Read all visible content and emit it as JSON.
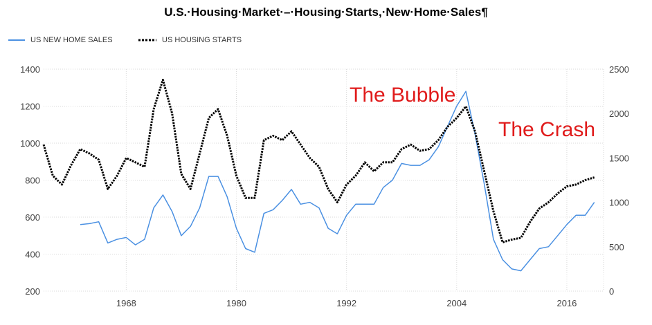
{
  "title": "U.S.·Housing·Market·–·Housing·Starts,·New·Home·Sales¶",
  "legend": [
    {
      "label": "US NEW HOME SALES",
      "color": "#4a90e2",
      "style": "solid"
    },
    {
      "label": "US HOUSING STARTS",
      "color": "#000000",
      "style": "dotted"
    }
  ],
  "annotations": [
    {
      "text": "The Bubble",
      "color": "#e01b1b"
    },
    {
      "text": "The Crash",
      "color": "#e01b1b"
    }
  ],
  "chart_data": {
    "type": "line",
    "x_ticks": [
      "1968",
      "1980",
      "1992",
      "2004",
      "2016"
    ],
    "x_range": [
      1959,
      2020
    ],
    "y_left": {
      "ticks": [
        "200",
        "400",
        "600",
        "800",
        "1000",
        "1200",
        "1400"
      ],
      "range": [
        200,
        1400
      ]
    },
    "y_right": {
      "ticks": [
        "0",
        "500",
        "1000",
        "1500",
        "2000",
        "2500"
      ],
      "range": [
        0,
        2500
      ]
    },
    "grid": true,
    "legend_position": "top-left",
    "series": [
      {
        "name": "US NEW HOME SALES",
        "axis": "left",
        "color": "#4a90e2",
        "x": [
          1963,
          1964,
          1965,
          1966,
          1967,
          1968,
          1969,
          1970,
          1971,
          1972,
          1973,
          1974,
          1975,
          1976,
          1977,
          1978,
          1979,
          1980,
          1981,
          1982,
          1983,
          1984,
          1985,
          1986,
          1987,
          1988,
          1989,
          1990,
          1991,
          1992,
          1993,
          1994,
          1995,
          1996,
          1997,
          1998,
          1999,
          2000,
          2001,
          2002,
          2003,
          2004,
          2005,
          2006,
          2007,
          2008,
          2009,
          2010,
          2011,
          2012,
          2013,
          2014,
          2015,
          2016,
          2017,
          2018,
          2019
        ],
        "values": [
          560,
          565,
          575,
          460,
          480,
          490,
          450,
          480,
          650,
          720,
          630,
          500,
          550,
          650,
          820,
          820,
          710,
          540,
          430,
          410,
          620,
          640,
          690,
          750,
          670,
          680,
          650,
          540,
          510,
          610,
          670,
          670,
          670,
          760,
          800,
          890,
          880,
          880,
          910,
          980,
          1090,
          1200,
          1280,
          1050,
          780,
          480,
          370,
          320,
          310,
          370,
          430,
          440,
          500,
          560,
          610,
          610,
          680
        ]
      },
      {
        "name": "US HOUSING STARTS",
        "axis": "right",
        "color": "#000000",
        "x": [
          1959,
          1960,
          1961,
          1962,
          1963,
          1964,
          1965,
          1966,
          1967,
          1968,
          1969,
          1970,
          1971,
          1972,
          1973,
          1974,
          1975,
          1976,
          1977,
          1978,
          1979,
          1980,
          1981,
          1982,
          1983,
          1984,
          1985,
          1986,
          1987,
          1988,
          1989,
          1990,
          1991,
          1992,
          1993,
          1994,
          1995,
          1996,
          1997,
          1998,
          1999,
          2000,
          2001,
          2002,
          2003,
          2004,
          2005,
          2006,
          2007,
          2008,
          2009,
          2010,
          2011,
          2012,
          2013,
          2014,
          2015,
          2016,
          2017,
          2018,
          2019
        ],
        "values": [
          1650,
          1300,
          1200,
          1420,
          1600,
          1550,
          1480,
          1150,
          1300,
          1500,
          1450,
          1400,
          2050,
          2380,
          2000,
          1320,
          1150,
          1550,
          1950,
          2050,
          1750,
          1300,
          1050,
          1050,
          1700,
          1750,
          1700,
          1800,
          1650,
          1500,
          1400,
          1150,
          1000,
          1200,
          1300,
          1450,
          1350,
          1450,
          1450,
          1600,
          1650,
          1580,
          1600,
          1700,
          1850,
          1950,
          2080,
          1800,
          1350,
          900,
          550,
          580,
          600,
          780,
          930,
          1000,
          1100,
          1180,
          1200,
          1250,
          1280
        ]
      }
    ]
  }
}
